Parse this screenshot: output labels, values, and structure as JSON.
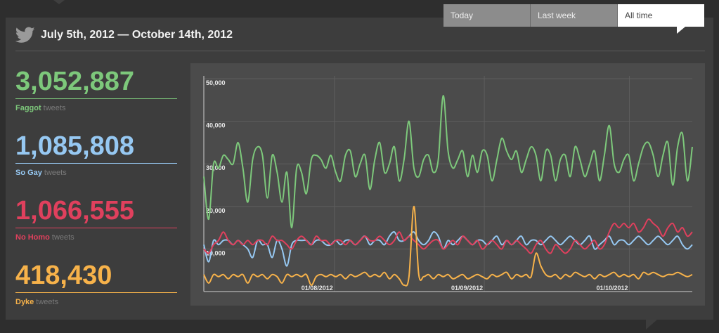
{
  "tabs": [
    {
      "label": "Today",
      "active": false
    },
    {
      "label": "Last week",
      "active": false
    },
    {
      "label": "All time",
      "active": true
    }
  ],
  "header": {
    "date_range": "July 5th, 2012 — October 14th, 2012",
    "icon": "twitter-bird-icon"
  },
  "stats": [
    {
      "value": "3,052,887",
      "term": "Faggot",
      "suffix": "tweets",
      "color": "#7dc87b"
    },
    {
      "value": "1,085,808",
      "term": "So Gay",
      "suffix": "tweets",
      "color": "#96c8f2"
    },
    {
      "value": "1,066,555",
      "term": "No Homo",
      "suffix": "tweets",
      "color": "#e0405d"
    },
    {
      "value": "418,430",
      "term": "Dyke",
      "suffix": "tweets",
      "color": "#f7b24a"
    }
  ],
  "chart_data": {
    "type": "line",
    "x_range": [
      "2012-07-05",
      "2012-10-14"
    ],
    "ylim": [
      0,
      50000
    ],
    "y_ticks": [
      "10,000",
      "20,000",
      "30,000",
      "40,000",
      "50,000"
    ],
    "x_ticks": [
      "01/08/2012",
      "01/09/2012",
      "01/10/2012"
    ],
    "grid": true,
    "series": [
      {
        "name": "Faggot",
        "color": "#7dc87b",
        "values": [
          27000,
          17000,
          30000,
          29000,
          32000,
          31000,
          30000,
          35000,
          29000,
          21000,
          31000,
          34000,
          32000,
          22000,
          32000,
          28000,
          21000,
          28000,
          15000,
          29000,
          28000,
          23000,
          31000,
          32000,
          31000,
          29000,
          32000,
          28000,
          26000,
          32000,
          33000,
          27000,
          30000,
          32000,
          24000,
          31000,
          35000,
          28000,
          30000,
          34000,
          26000,
          31000,
          40000,
          29000,
          27000,
          31000,
          32000,
          28000,
          31000,
          46000,
          33000,
          29000,
          31000,
          33000,
          27000,
          32000,
          28000,
          33000,
          32000,
          26000,
          31000,
          36000,
          33000,
          31000,
          33000,
          28000,
          31000,
          34000,
          32000,
          26000,
          33000,
          32000,
          26000,
          31000,
          32000,
          27000,
          34000,
          31000,
          27000,
          30000,
          33000,
          26000,
          32000,
          39000,
          30000,
          28000,
          31000,
          32000,
          26000,
          30000,
          34000,
          35000,
          32000,
          27000,
          32000,
          35000,
          25000,
          34000,
          37000,
          26000,
          34000
        ]
      },
      {
        "name": "So Gay",
        "color": "#96c8f2",
        "values": [
          11000,
          7000,
          12000,
          11000,
          12000,
          12000,
          11000,
          12000,
          11000,
          10000,
          8000,
          12000,
          11000,
          11000,
          8000,
          12000,
          10000,
          6000,
          11000,
          12000,
          12000,
          12000,
          11000,
          12000,
          12000,
          11000,
          11000,
          12000,
          11000,
          12000,
          12000,
          11000,
          12000,
          13000,
          11000,
          12000,
          12000,
          11000,
          13000,
          14000,
          12000,
          12000,
          13000,
          14000,
          12000,
          11000,
          12000,
          14000,
          13000,
          10000,
          12000,
          11000,
          12000,
          13000,
          12000,
          11000,
          12000,
          12000,
          11000,
          12000,
          13000,
          11000,
          12000,
          11000,
          12000,
          13000,
          11000,
          12000,
          12000,
          11000,
          12000,
          13000,
          12000,
          11000,
          12000,
          13000,
          12000,
          11000,
          12000,
          13000,
          10000,
          11000,
          12000,
          13000,
          11000,
          12000,
          12000,
          11000,
          12000,
          13000,
          12000,
          11000,
          12000,
          13000,
          12000,
          11000,
          12000,
          13000,
          11000,
          10000,
          11000
        ]
      },
      {
        "name": "No Homo",
        "color": "#e0405d",
        "values": [
          10000,
          9000,
          11000,
          12000,
          14000,
          12000,
          11000,
          12000,
          11000,
          12000,
          11000,
          12000,
          12000,
          11000,
          13000,
          12000,
          12000,
          11000,
          10000,
          12000,
          13000,
          12000,
          11000,
          13000,
          12000,
          12000,
          11000,
          12000,
          12000,
          11000,
          12000,
          11000,
          12000,
          13000,
          12000,
          12000,
          13000,
          12000,
          11000,
          12000,
          14000,
          12000,
          13000,
          12000,
          11000,
          10000,
          11000,
          12000,
          12000,
          10000,
          11000,
          12000,
          11000,
          13000,
          12000,
          11000,
          12000,
          10000,
          11000,
          12000,
          11000,
          10000,
          12000,
          11000,
          12000,
          11000,
          10000,
          9000,
          11000,
          12000,
          10000,
          9000,
          11000,
          10000,
          9000,
          10000,
          12000,
          11000,
          10000,
          11000,
          12000,
          10000,
          11000,
          14000,
          16000,
          15000,
          16000,
          15000,
          16000,
          14000,
          15000,
          17000,
          16000,
          15000,
          13000,
          15000,
          16000,
          14000,
          15000,
          13000,
          14000
        ]
      },
      {
        "name": "Dyke",
        "color": "#f7b24a",
        "values": [
          4000,
          2000,
          4000,
          3500,
          4000,
          3000,
          4000,
          3500,
          4000,
          2000,
          4000,
          3500,
          4000,
          3000,
          4000,
          3500,
          2000,
          4000,
          3500,
          4000,
          3500,
          4000,
          1500,
          3500,
          4000,
          3500,
          4000,
          3500,
          4000,
          3000,
          4000,
          3500,
          4000,
          4500,
          3500,
          4000,
          3500,
          4500,
          3000,
          4000,
          3000,
          1500,
          3500,
          20000,
          4000,
          3500,
          4000,
          3000,
          4000,
          3500,
          4000,
          3000,
          3500,
          4000,
          3000,
          3500,
          4000,
          3500,
          3000,
          4000,
          3500,
          4000,
          4500,
          3000,
          4000,
          3500,
          4000,
          3500,
          9000,
          6000,
          4000,
          3500,
          4000,
          3000,
          4000,
          3500,
          4500,
          4000,
          3500,
          4000,
          3000,
          4000,
          3500,
          4000,
          4500,
          3500,
          4000,
          3500,
          4000,
          3000,
          4500,
          4000,
          4500,
          4000,
          3500,
          4000,
          4000,
          4500,
          4000,
          3500,
          4000
        ]
      }
    ]
  }
}
